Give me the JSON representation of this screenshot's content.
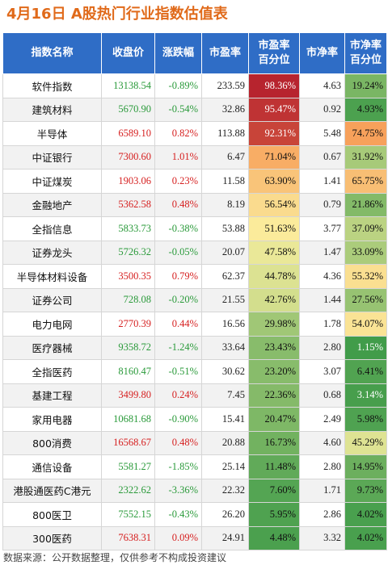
{
  "title": "4月16日  A股热门行业指数估值表",
  "headers": [
    "指数名称",
    "收盘价",
    "涨跌幅",
    "市盈率",
    "市盈率\n百分位",
    "市净率",
    "市净率\n百分位"
  ],
  "rows": [
    {
      "name": "软件指数",
      "close": "13138.54",
      "change": "-0.89%",
      "pe": "233.59",
      "pe_pct": "98.36%",
      "pb": "4.63",
      "pb_pct": "19.24%"
    },
    {
      "name": "建筑材料",
      "close": "5670.90",
      "change": "-0.54%",
      "pe": "32.86",
      "pe_pct": "95.47%",
      "pb": "0.92",
      "pb_pct": "4.93%"
    },
    {
      "name": "半导体",
      "close": "6589.10",
      "change": "0.82%",
      "pe": "113.88",
      "pe_pct": "92.31%",
      "pb": "5.48",
      "pb_pct": "74.75%"
    },
    {
      "name": "中证银行",
      "close": "7300.60",
      "change": "1.01%",
      "pe": "6.47",
      "pe_pct": "71.04%",
      "pb": "0.67",
      "pb_pct": "31.92%"
    },
    {
      "name": "中证煤炭",
      "close": "1903.06",
      "change": "0.23%",
      "pe": "11.58",
      "pe_pct": "63.90%",
      "pb": "1.41",
      "pb_pct": "65.75%"
    },
    {
      "name": "金融地产",
      "close": "5362.58",
      "change": "0.48%",
      "pe": "8.19",
      "pe_pct": "56.54%",
      "pb": "0.79",
      "pb_pct": "21.86%"
    },
    {
      "name": "全指信息",
      "close": "5833.73",
      "change": "-0.38%",
      "pe": "53.88",
      "pe_pct": "51.63%",
      "pb": "3.77",
      "pb_pct": "37.09%"
    },
    {
      "name": "证券龙头",
      "close": "5726.32",
      "change": "-0.05%",
      "pe": "20.07",
      "pe_pct": "47.58%",
      "pb": "1.47",
      "pb_pct": "33.09%"
    },
    {
      "name": "半导体材料设备",
      "close": "3500.35",
      "change": "0.79%",
      "pe": "62.37",
      "pe_pct": "44.78%",
      "pb": "4.36",
      "pb_pct": "55.32%"
    },
    {
      "name": "证券公司",
      "close": "728.08",
      "change": "-0.20%",
      "pe": "21.55",
      "pe_pct": "42.76%",
      "pb": "1.44",
      "pb_pct": "27.56%"
    },
    {
      "name": "电力电网",
      "close": "2770.39",
      "change": "0.44%",
      "pe": "16.56",
      "pe_pct": "29.98%",
      "pb": "1.78",
      "pb_pct": "54.07%"
    },
    {
      "name": "医疗器械",
      "close": "9358.72",
      "change": "-1.24%",
      "pe": "33.64",
      "pe_pct": "23.43%",
      "pb": "2.80",
      "pb_pct": "1.15%"
    },
    {
      "name": "全指医药",
      "close": "8160.47",
      "change": "-0.51%",
      "pe": "30.62",
      "pe_pct": "23.20%",
      "pb": "3.07",
      "pb_pct": "6.41%"
    },
    {
      "name": "基建工程",
      "close": "3499.80",
      "change": "0.24%",
      "pe": "7.45",
      "pe_pct": "22.36%",
      "pb": "0.68",
      "pb_pct": "3.14%"
    },
    {
      "name": "家用电器",
      "close": "10681.68",
      "change": "-0.90%",
      "pe": "15.41",
      "pe_pct": "20.47%",
      "pb": "2.49",
      "pb_pct": "5.98%"
    },
    {
      "name": "800消费",
      "close": "16568.67",
      "change": "0.48%",
      "pe": "20.88",
      "pe_pct": "16.73%",
      "pb": "4.60",
      "pb_pct": "45.29%"
    },
    {
      "name": "通信设备",
      "close": "5581.27",
      "change": "-1.85%",
      "pe": "25.14",
      "pe_pct": "11.48%",
      "pb": "2.80",
      "pb_pct": "14.95%"
    },
    {
      "name": "港股通医药C港元",
      "close": "2322.62",
      "change": "-3.36%",
      "pe": "22.32",
      "pe_pct": "7.60%",
      "pb": "1.71",
      "pb_pct": "9.73%"
    },
    {
      "name": "800医卫",
      "close": "7552.15",
      "change": "-0.43%",
      "pe": "26.20",
      "pe_pct": "5.95%",
      "pb": "2.86",
      "pb_pct": "4.02%"
    },
    {
      "name": "300医药",
      "close": "7638.31",
      "change": "0.09%",
      "pe": "24.91",
      "pe_pct": "4.48%",
      "pb": "3.32",
      "pb_pct": "4.02%"
    }
  ],
  "colors": {
    "title": "#e06a1a",
    "header_bg": "#2f6dc6",
    "up": "#d62020",
    "down": "#2a9a3a",
    "heat_high": "#b31b2b",
    "heat_mid": "#fbf0a0",
    "heat_low": "#3d9a48"
  },
  "footer": "数据来源：公开数据整理，仅供参考不构成投资建议"
}
